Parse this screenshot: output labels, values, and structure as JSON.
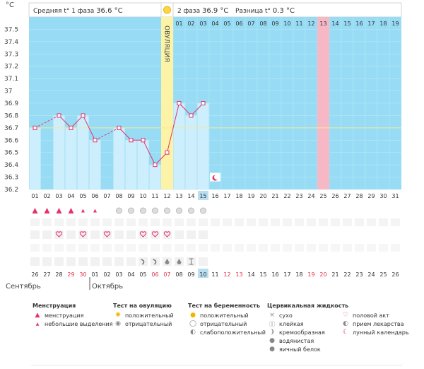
{
  "chart_data": {
    "type": "line",
    "unit_label": "°C",
    "ylim": [
      36.2,
      37.5
    ],
    "yticks": [
      "37.5",
      "37.4",
      "37.3",
      "37.2",
      "37.1",
      "37",
      "36.9",
      "36.8",
      "36.7",
      "36.6",
      "36.5",
      "36.4",
      "36.3",
      "36.2"
    ],
    "coverline": 36.7,
    "phase1_label": "Средняя t° 1 фаза",
    "phase1_value": "36.6 °C",
    "phase2_label": "2 фаза",
    "phase2_value": "36.9 °C",
    "diff_label": "Разница t°",
    "diff_value": "0.3 °C",
    "ovulation_label": "ОВУЛЯЦИЯ",
    "ovulation_day": 12,
    "highlight_day": 25,
    "today_day": 15,
    "cycle_days": [
      "01",
      "02",
      "03",
      "04",
      "05",
      "06",
      "07",
      "08",
      "09",
      "10",
      "11",
      "12",
      "13",
      "14",
      "15",
      "16",
      "17",
      "18",
      "19",
      "20",
      "21",
      "22",
      "23",
      "24",
      "25",
      "26",
      "27",
      "28",
      "29",
      "30",
      "31"
    ],
    "phase2_days": [
      "01",
      "02",
      "03",
      "04",
      "05",
      "06",
      "07",
      "08",
      "09",
      "10",
      "11",
      "12",
      "13",
      "14",
      "15",
      "16",
      "17",
      "18",
      "19"
    ],
    "temperatures": [
      36.7,
      null,
      36.8,
      36.7,
      36.8,
      36.6,
      null,
      36.7,
      36.6,
      36.6,
      36.4,
      36.5,
      36.9,
      36.8,
      36.9
    ],
    "calendar_dates": [
      "26",
      "27",
      "28",
      "29",
      "30",
      "01",
      "02",
      "03",
      "04",
      "05",
      "06",
      "07",
      "08",
      "09",
      "10",
      "11",
      "12",
      "13",
      "14",
      "15",
      "16",
      "17",
      "18",
      "19",
      "20",
      "21",
      "22",
      "23",
      "24",
      "25",
      "26"
    ],
    "red_dates": [
      4,
      5,
      11,
      12,
      17,
      18,
      24,
      25
    ],
    "today_date_index": 15,
    "month1": "Сентябрь",
    "month2": "Октябрь",
    "menstruation": [
      "big",
      "big",
      "big",
      "big",
      "small",
      "small",
      null,
      null,
      null,
      null,
      null,
      null,
      null,
      null,
      null
    ],
    "ovulation_test": [
      null,
      null,
      null,
      null,
      null,
      null,
      null,
      "neg",
      "neg",
      "neg",
      "neg",
      "neg",
      "neg",
      "neg",
      "neg"
    ],
    "intercourse": [
      null,
      null,
      "heart",
      null,
      "heart",
      null,
      "heart",
      null,
      null,
      "heart",
      "heart",
      "heart",
      null,
      null,
      null
    ],
    "mucus": [
      null,
      null,
      null,
      null,
      null,
      null,
      null,
      null,
      null,
      "cream",
      "cream",
      "water",
      "water",
      "sticky",
      null
    ]
  },
  "legend": {
    "menstruation": {
      "title": "Менструация",
      "items": [
        "менструация",
        "небольшие выделения"
      ]
    },
    "ovulation_test": {
      "title": "Тест на овуляцию",
      "items": [
        "положительный",
        "отрицательный"
      ]
    },
    "pregnancy_test": {
      "title": "Тест на беременность",
      "items": [
        "положительный",
        "отрицательный",
        "слабоположительный"
      ]
    },
    "mucus": {
      "title": "Цервикальная жидкость",
      "items": [
        "сухо",
        "клейкая",
        "кремообразная",
        "водянистая",
        "яичный белок"
      ]
    },
    "other": {
      "items": [
        "половой акт",
        "прием лекарства",
        "лунный календарь"
      ]
    }
  },
  "colors": {
    "chart_bg": "#97dcf4",
    "bar_fill": "#cdeefc",
    "ovulation_band": "#fcf3a6",
    "highlight_band": "#f7b8c6",
    "line": "#e0336b",
    "accent": "#e6336a"
  }
}
